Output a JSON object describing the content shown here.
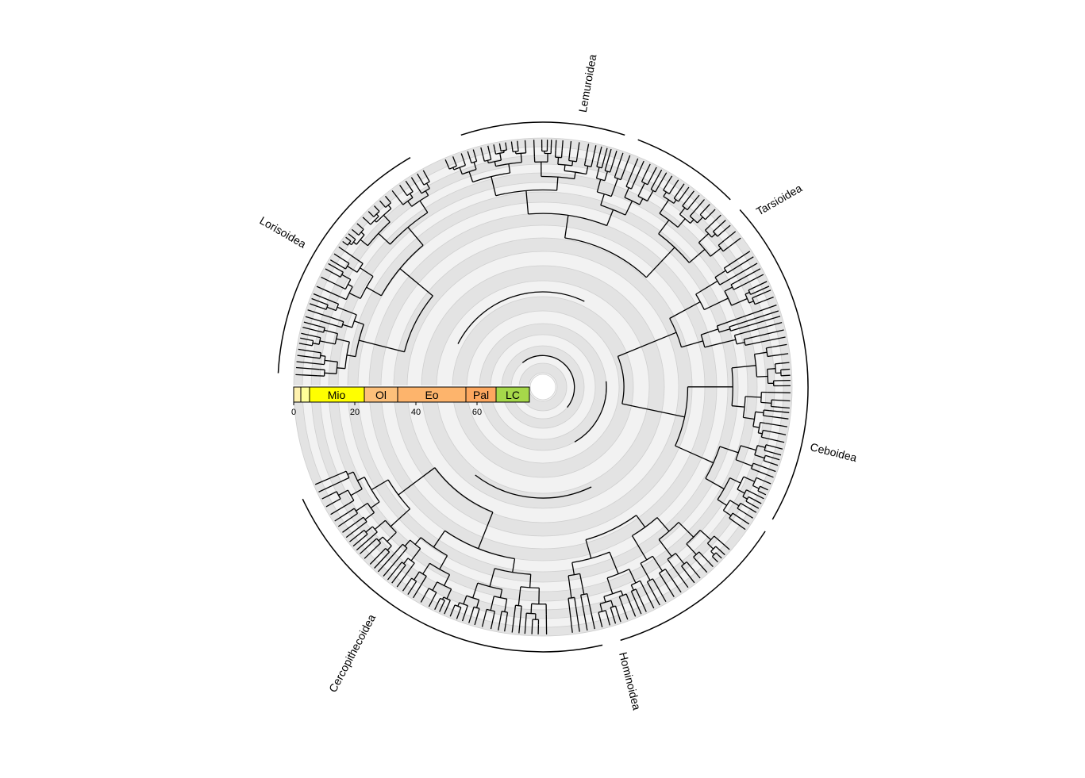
{
  "clade_labels": [
    {
      "name": "Lemuroidea"
    },
    {
      "name": "Tarsioidea"
    },
    {
      "name": "Ceboidea"
    },
    {
      "name": "Hominoidea"
    },
    {
      "name": "Cercopithecoidea"
    },
    {
      "name": "Lorisoidea"
    }
  ],
  "timescale": {
    "units": [
      "Mio",
      "Ol",
      "Eo",
      "Pal",
      "LC"
    ],
    "ticks": [
      "0",
      "20",
      "40",
      "60"
    ]
  },
  "colors": {
    "ring_dark": "#e3e3e3",
    "ring_light": "#f2f2f2",
    "ring_stroke": "#cfcfcf",
    "branch": "#000000",
    "period_pleistocene": "#fff2ae",
    "period_pliocene": "#ffff99",
    "period_miocene": "#ffff00",
    "period_oligocene": "#fdc07a",
    "period_eocene": "#fdb46c",
    "period_paleocene": "#fda75f",
    "period_late_cretaceous": "#a6d84a"
  }
}
